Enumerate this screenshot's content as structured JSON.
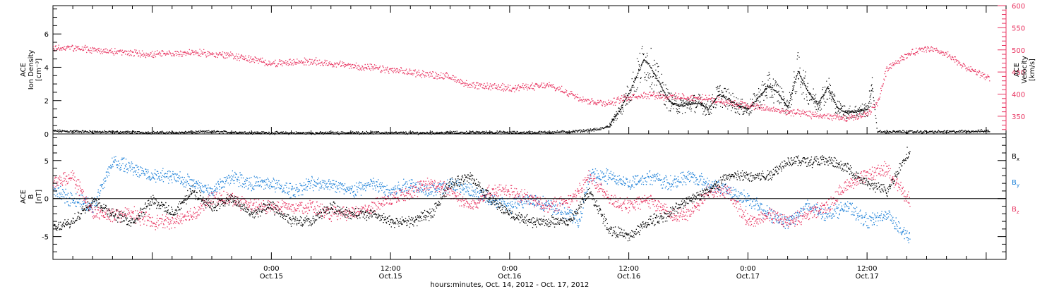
{
  "colors": {
    "black": "#000000",
    "pink": "#e8325f",
    "blue": "#1a7fd8",
    "axis": "#000000"
  },
  "chart_data": [
    {
      "type": "scatter",
      "panel": "top",
      "ylabel_left": [
        "ACE",
        "Ion Density",
        "[cm⁻³]"
      ],
      "ylabel_right": [
        "ACE",
        "Velocity",
        "[km/s]"
      ],
      "xlim_hours": [
        -22,
        74
      ],
      "ylim_left": [
        0,
        7.7
      ],
      "ylim_right": [
        310,
        600
      ],
      "yticks_left": [
        "0",
        "2",
        "4",
        "6"
      ],
      "yticks_right": [
        "350",
        "400",
        "450",
        "500",
        "550",
        "600"
      ],
      "series": [
        {
          "label": "Ion Density",
          "color": "#000000",
          "axis": "left",
          "x": [
            -22,
            -18,
            -14,
            -10,
            -6,
            -2,
            2,
            6,
            10,
            14,
            18,
            22,
            26,
            30,
            33,
            34,
            35,
            36,
            37,
            37.5,
            38,
            39,
            40,
            41,
            42,
            43,
            44,
            45,
            46,
            47,
            48,
            49,
            50,
            51,
            52,
            53,
            54,
            55,
            56,
            57,
            58,
            59,
            60,
            60.5,
            61,
            64,
            68,
            72
          ],
          "y": [
            0.2,
            0.15,
            0.12,
            0.1,
            0.15,
            0.1,
            0.08,
            0.08,
            0.1,
            0.08,
            0.1,
            0.12,
            0.1,
            0.15,
            0.3,
            0.5,
            1.4,
            2.5,
            3.8,
            4.5,
            4.2,
            3.1,
            2.0,
            1.7,
            1.8,
            1.9,
            1.5,
            2.4,
            2.1,
            1.7,
            1.5,
            2.2,
            2.9,
            2.5,
            1.6,
            3.8,
            2.6,
            1.8,
            2.8,
            1.6,
            1.3,
            1.4,
            1.5,
            2.8,
            0.15,
            0.15,
            0.15,
            0.2
          ]
        },
        {
          "label": "Velocity",
          "color": "#e8325f",
          "axis": "right",
          "x": [
            -22,
            -20,
            -16,
            -12,
            -8,
            -4,
            0,
            4,
            8,
            12,
            16,
            18,
            20,
            24,
            28,
            32,
            34,
            36,
            38,
            40,
            44,
            48,
            52,
            56,
            58,
            60,
            61,
            62,
            64,
            66,
            68,
            70,
            72
          ],
          "y": [
            505,
            505,
            497,
            490,
            495,
            488,
            470,
            475,
            465,
            455,
            445,
            440,
            420,
            415,
            420,
            385,
            380,
            395,
            400,
            395,
            390,
            375,
            360,
            350,
            345,
            355,
            380,
            460,
            490,
            505,
            490,
            460,
            440
          ]
        }
      ]
    },
    {
      "type": "scatter",
      "panel": "bottom",
      "ylabel_left": [
        "ACE",
        "B",
        "[nT]"
      ],
      "xlim_hours": [
        -22,
        74
      ],
      "ylim": [
        -8.0,
        8.5
      ],
      "yticks": [
        "-5",
        "0",
        "5"
      ],
      "xticks": [
        {
          "hour": 0,
          "time": "0:00",
          "date": "Oct.15"
        },
        {
          "hour": 12,
          "time": "12:00",
          "date": "Oct.15"
        },
        {
          "hour": 24,
          "time": "0:00",
          "date": "Oct.16"
        },
        {
          "hour": 36,
          "time": "12:00",
          "date": "Oct.16"
        },
        {
          "hour": 48,
          "time": "0:00",
          "date": "Oct.17"
        },
        {
          "hour": 60,
          "time": "12:00",
          "date": "Oct.17"
        }
      ],
      "xlabel": "hours:minutes, Oct. 14, 2012 - Oct. 17, 2012",
      "series": [
        {
          "label": "Bx",
          "color": "#000000",
          "x": [
            -22,
            -20,
            -18,
            -16,
            -14,
            -12,
            -10,
            -8,
            -6,
            -4,
            -2,
            0,
            2,
            4,
            6,
            8,
            10,
            12,
            14,
            16,
            18,
            20,
            22,
            24,
            26,
            28,
            30,
            31,
            32,
            34,
            36,
            38,
            40,
            42,
            44,
            46,
            48,
            50,
            52,
            54,
            56,
            58,
            60,
            62,
            64
          ],
          "y": [
            -4,
            -3,
            0,
            -2,
            -3,
            0,
            -2,
            1,
            -1,
            0,
            -2,
            -1,
            -3,
            -3,
            -1,
            -2,
            -2,
            -3,
            -3,
            -2,
            2,
            3,
            0,
            -2,
            -3,
            -3,
            -3,
            -1,
            1,
            -4,
            -5,
            -3,
            -2,
            0,
            1,
            3,
            3,
            3,
            5,
            5,
            5,
            4,
            2,
            1,
            6
          ]
        },
        {
          "label": "By",
          "color": "#1a7fd8",
          "x": [
            -22,
            -20,
            -18,
            -16,
            -14,
            -12,
            -10,
            -8,
            -6,
            -4,
            -2,
            0,
            2,
            4,
            6,
            8,
            10,
            12,
            14,
            16,
            18,
            20,
            22,
            24,
            26,
            28,
            30,
            31,
            32,
            34,
            36,
            38,
            40,
            42,
            44,
            46,
            48,
            50,
            52,
            54,
            56,
            58,
            60,
            62,
            64
          ],
          "y": [
            1,
            0,
            -1,
            5,
            4,
            3,
            3,
            2,
            1,
            3,
            2,
            2,
            1,
            2,
            2,
            1,
            2,
            1,
            2,
            1,
            2,
            1,
            0,
            -1,
            0,
            -1,
            -2,
            -3,
            3,
            3,
            2,
            3,
            2,
            3,
            2,
            1,
            0,
            -2,
            -3,
            -1,
            -2,
            -1,
            -3,
            -2,
            -5
          ]
        },
        {
          "label": "Bz",
          "color": "#e8325f",
          "x": [
            -22,
            -20,
            -18,
            -16,
            -14,
            -12,
            -10,
            -8,
            -6,
            -4,
            -2,
            0,
            2,
            4,
            6,
            8,
            10,
            12,
            14,
            16,
            18,
            20,
            22,
            24,
            26,
            28,
            30,
            31,
            32,
            34,
            36,
            38,
            40,
            42,
            44,
            46,
            48,
            50,
            52,
            54,
            56,
            58,
            60,
            62,
            64
          ],
          "y": [
            2,
            3,
            -2,
            -2,
            -2,
            -3,
            -3,
            -2,
            0,
            0,
            -1,
            -1,
            -1,
            -1,
            -2,
            -2,
            -1,
            0,
            1,
            2,
            1,
            -1,
            1,
            1,
            0,
            -1,
            0,
            1,
            3,
            0,
            -1,
            0,
            -2,
            -2,
            1,
            1,
            -3,
            -2,
            -3,
            -2,
            -1,
            2,
            3,
            4,
            0
          ]
        }
      ]
    }
  ]
}
